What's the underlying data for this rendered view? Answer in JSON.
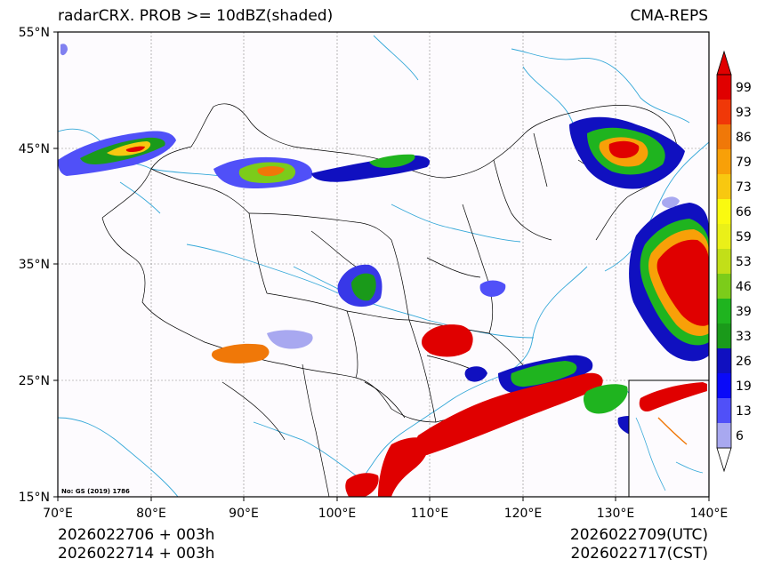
{
  "title_left": "radarCRX. PROB >= 10dBZ(shaded)",
  "title_right": "CMA-REPS",
  "init_line1": "2026022706  +  003h",
  "init_line2": "2026022714  +  003h",
  "valid_line1": "2026022709(UTC)",
  "valid_line2": "2026022717(CST)",
  "map_note": "No: GS (2019) 1786",
  "axes": {
    "lat_labels": [
      "55°N",
      "45°N",
      "35°N",
      "25°N",
      "15°N"
    ],
    "lon_labels": [
      "70°E",
      "80°E",
      "90°E",
      "100°E",
      "110°E",
      "120°E",
      "130°E",
      "140°E"
    ]
  },
  "colorbar": {
    "levels": [
      "6",
      "13",
      "19",
      "26",
      "33",
      "39",
      "46",
      "53",
      "59",
      "66",
      "73",
      "79",
      "86",
      "93",
      "99"
    ],
    "colors": [
      "#a8a8f0",
      "#5050f8",
      "#0a0af8",
      "#1010c0",
      "#1a9a1a",
      "#1fb41f",
      "#7ccc1a",
      "#c2df18",
      "#eaf018",
      "#fafa10",
      "#f8c810",
      "#f8a008",
      "#f07808",
      "#f03808",
      "#e00000"
    ]
  },
  "colors": {
    "border": "#000000",
    "rivers": "#35a8d8",
    "grid": "#888888"
  }
}
